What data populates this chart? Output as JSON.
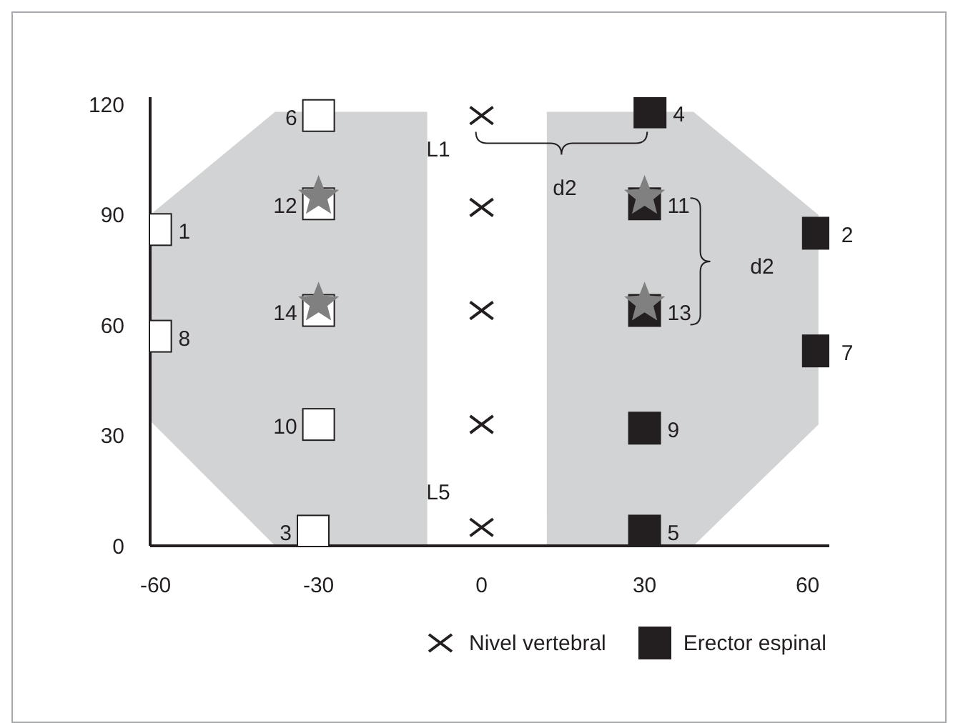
{
  "chart_data": {
    "type": "scatter",
    "xlim": [
      -61,
      64
    ],
    "ylim": [
      0,
      122
    ],
    "xticks": [
      -60,
      -30,
      0,
      30,
      60
    ],
    "yticks": [
      0,
      30,
      60,
      90,
      120
    ],
    "legend": "bottom",
    "series": [
      {
        "type": "area",
        "color": "#d1d3d4",
        "x": [
          -61,
          -38,
          -10,
          -10,
          -38,
          -61
        ],
        "values": [
          90,
          118,
          118,
          0,
          0,
          34
        ]
      },
      {
        "type": "area",
        "color": "#d1d3d4",
        "x": [
          12,
          39,
          62,
          62,
          39,
          12
        ],
        "values": [
          118,
          118,
          90,
          33,
          0,
          0
        ]
      },
      {
        "marker": "square",
        "color": "#ffffff",
        "x": [
          -60,
          -60,
          -30,
          -30,
          -30,
          -30,
          -31
        ],
        "values": [
          86,
          57,
          117,
          93,
          64,
          33,
          4
        ]
      },
      {
        "name": "Nivel vertebral",
        "marker": "cross",
        "color": "#231f20",
        "x": [
          0,
          0,
          0,
          0,
          0
        ],
        "values": [
          117,
          92,
          64,
          33,
          5
        ]
      },
      {
        "name": "Erector espinal",
        "marker": "square",
        "color": "#231f20",
        "x": [
          31,
          30,
          30,
          30,
          30,
          62,
          62
        ],
        "values": [
          118,
          93,
          64,
          32,
          4,
          85,
          53
        ]
      },
      {
        "marker": "star",
        "color": "#808080",
        "x": [
          -30,
          -30,
          30,
          30
        ],
        "values": [
          95,
          66,
          95,
          66
        ]
      }
    ],
    "annotations": [
      {
        "text": "1",
        "x": -60,
        "y": 86
      },
      {
        "text": "8",
        "x": -60,
        "y": 57
      },
      {
        "text": "6",
        "x": -30,
        "y": 117
      },
      {
        "text": "12",
        "x": -30,
        "y": 93
      },
      {
        "text": "14",
        "x": -30,
        "y": 64
      },
      {
        "text": "10",
        "x": -30,
        "y": 33
      },
      {
        "text": "3",
        "x": -31,
        "y": 4
      },
      {
        "text": "L1",
        "x": 0,
        "y": 117
      },
      {
        "text": "L5",
        "x": 0,
        "y": 5
      },
      {
        "text": "4",
        "x": 31,
        "y": 118
      },
      "d2",
      {
        "text": "11",
        "x": 30,
        "y": 93
      },
      "d2",
      {
        "text": "13",
        "x": 30,
        "y": 64
      },
      {
        "text": "2",
        "x": 62,
        "y": 85
      },
      {
        "text": "7",
        "x": 62,
        "y": 53
      },
      {
        "text": "9",
        "x": 30,
        "y": 32
      },
      {
        "text": "5",
        "x": 30,
        "y": 4
      }
    ]
  }
}
